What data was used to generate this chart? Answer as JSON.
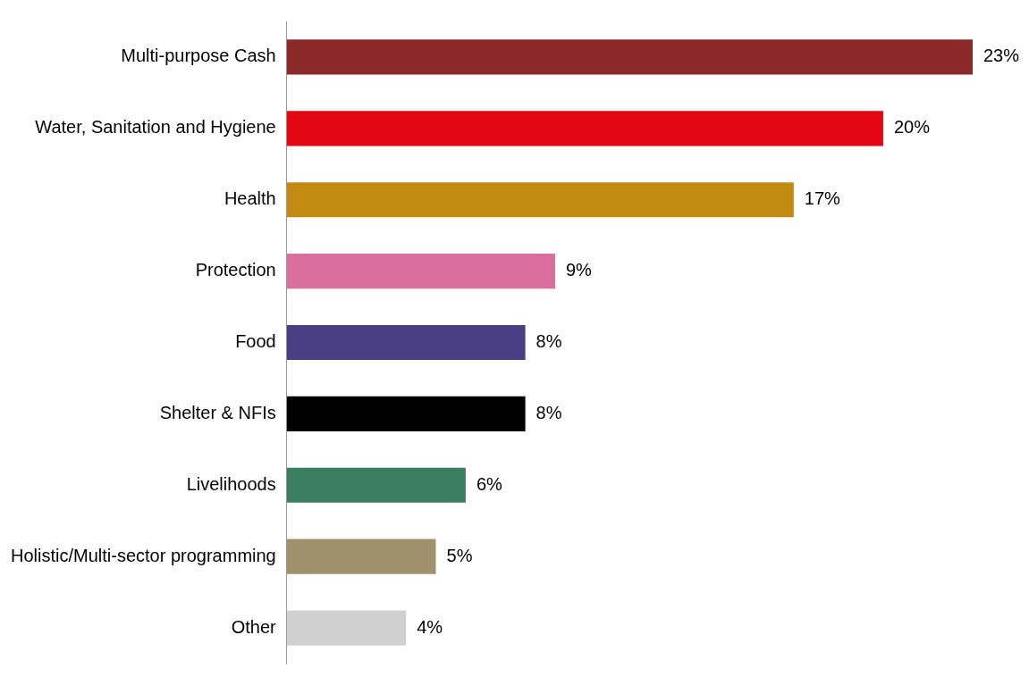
{
  "chart_data": {
    "type": "bar",
    "orientation": "horizontal",
    "categories": [
      "Multi-purpose Cash",
      "Water, Sanitation and Hygiene",
      "Health",
      "Protection",
      "Food",
      "Shelter & NFIs",
      "Livelihoods",
      "Holistic/Multi-sector programming",
      "Other"
    ],
    "values": [
      23,
      20,
      17,
      9,
      8,
      8,
      6,
      5,
      4
    ],
    "value_labels": [
      "23%",
      "20%",
      "17%",
      "9%",
      "8%",
      "8%",
      "6%",
      "5%",
      "4%"
    ],
    "colors": [
      "#8b2828",
      "#e30613",
      "#c28a10",
      "#db6e9c",
      "#4a3f85",
      "#000000",
      "#3a7d60",
      "#a0916d",
      "#d0d0d0"
    ],
    "legend": false
  }
}
